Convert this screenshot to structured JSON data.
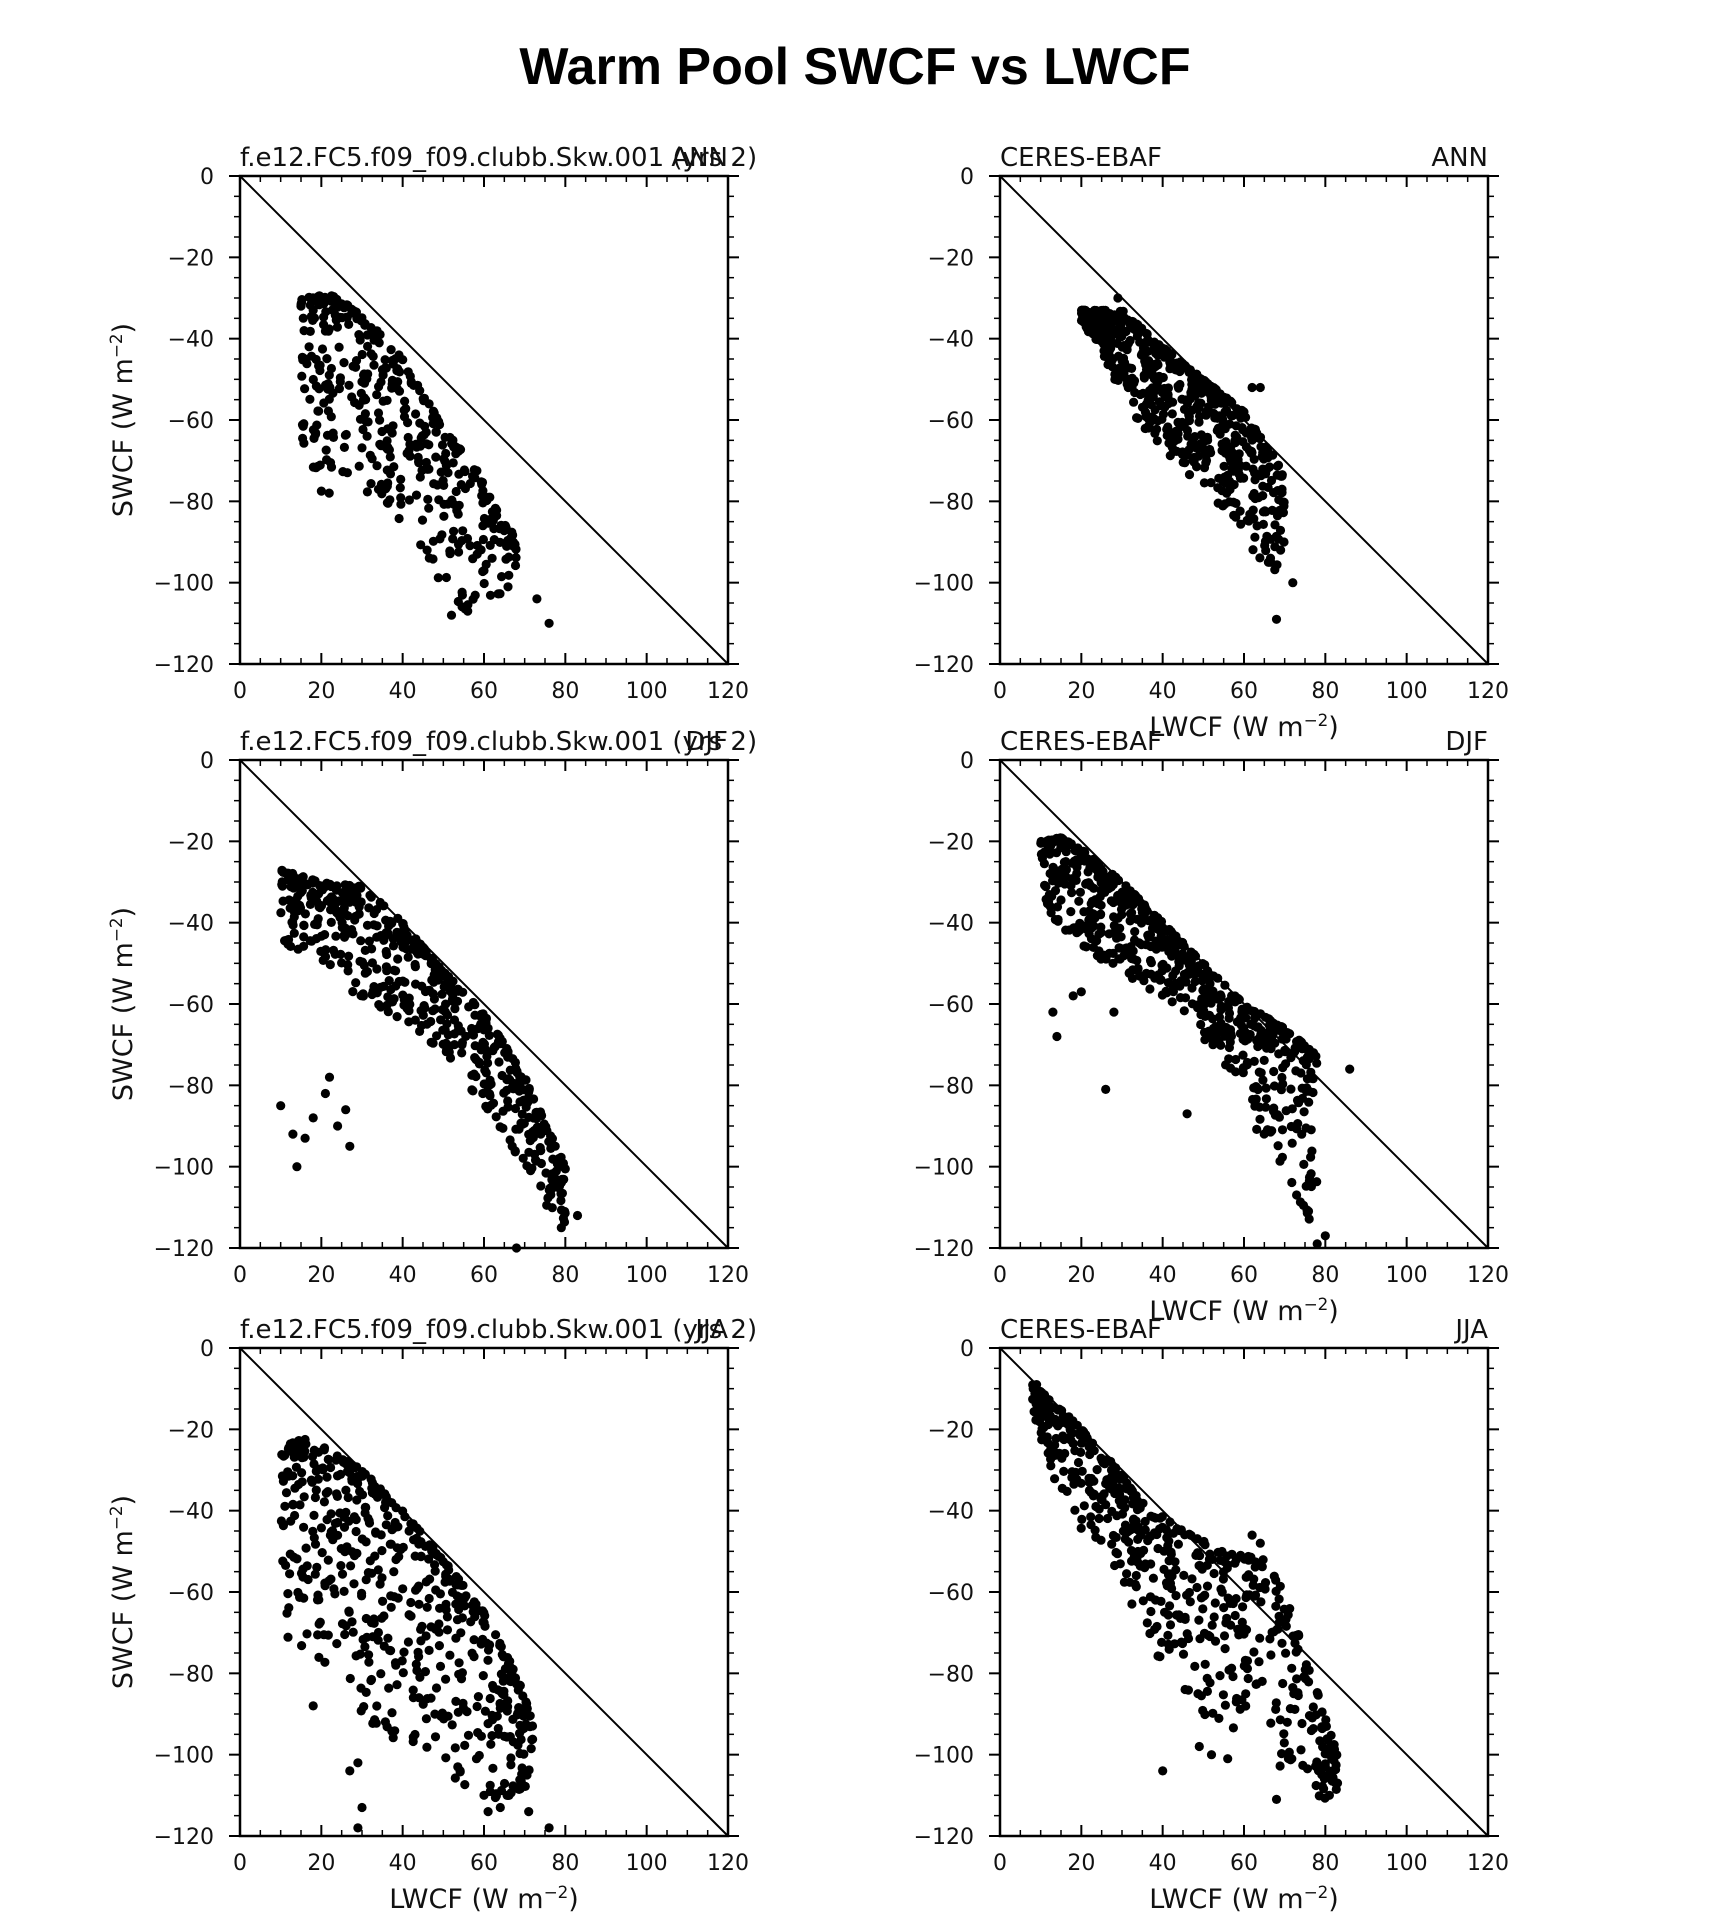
{
  "figure_title": "Warm Pool SWCF vs LWCF",
  "colors": {
    "background": "#ffffff",
    "points": "#000000",
    "axes": "#000000"
  },
  "chart_data": [
    {
      "type": "scatter",
      "left_label": "f.e12.FC5.f09_f09.clubb.Skw.001 (yrs 2)",
      "right_label": "ANN",
      "xlabel": "",
      "ylabel": "SWCF (W m^-2)",
      "xlim": [
        0,
        120
      ],
      "ylim": [
        -120,
        0
      ],
      "xticks": [
        0,
        20,
        40,
        60,
        80,
        100,
        120
      ],
      "yticks": [
        0,
        -20,
        -40,
        -60,
        -80,
        -100,
        -120
      ],
      "reference_line": {
        "x": [
          0,
          120
        ],
        "y": [
          0,
          -120
        ]
      },
      "cloud": {
        "n": 420,
        "seed": 11,
        "lead": [
          [
            15,
            -30
          ],
          [
            22,
            -29
          ],
          [
            30,
            -34
          ],
          [
            40,
            -45
          ],
          [
            50,
            -62
          ],
          [
            58,
            -72
          ],
          [
            65,
            -85
          ],
          [
            70,
            -92
          ]
        ],
        "trail": [
          [
            15,
            -68
          ],
          [
            20,
            -78
          ],
          [
            28,
            -78
          ],
          [
            40,
            -85
          ],
          [
            48,
            -98
          ],
          [
            55,
            -108
          ],
          [
            60,
            -106
          ],
          [
            68,
            -100
          ]
        ]
      },
      "points": [
        [
          76,
          -110
        ],
        [
          73,
          -104
        ],
        [
          52,
          -108
        ],
        [
          56,
          -107
        ],
        [
          60,
          -97
        ],
        [
          62,
          -94
        ],
        [
          46,
          -92
        ],
        [
          15,
          -32
        ],
        [
          18,
          -33
        ]
      ]
    },
    {
      "type": "scatter",
      "left_label": "CERES-EBAF",
      "right_label": "ANN",
      "xlabel": "LWCF (W m^-2)",
      "ylabel": "",
      "xlim": [
        0,
        120
      ],
      "ylim": [
        -120,
        0
      ],
      "xticks": [
        0,
        20,
        40,
        60,
        80,
        100,
        120
      ],
      "yticks": [
        0,
        -20,
        -40,
        -60,
        -80,
        -100,
        -120
      ],
      "reference_line": {
        "x": [
          0,
          120
        ],
        "y": [
          0,
          -120
        ]
      },
      "cloud": {
        "n": 600,
        "seed": 22,
        "lead": [
          [
            20,
            -33
          ],
          [
            25,
            -33
          ],
          [
            30,
            -33
          ],
          [
            40,
            -42
          ],
          [
            50,
            -50
          ],
          [
            60,
            -58
          ],
          [
            68,
            -70
          ],
          [
            76,
            -88
          ]
        ],
        "trail": [
          [
            20,
            -36
          ],
          [
            25,
            -44
          ],
          [
            30,
            -55
          ],
          [
            35,
            -62
          ],
          [
            45,
            -72
          ],
          [
            55,
            -82
          ],
          [
            63,
            -95
          ],
          [
            70,
            -100
          ]
        ]
      },
      "points": [
        [
          68,
          -109
        ],
        [
          72,
          -100
        ],
        [
          66,
          -95
        ],
        [
          69,
          -92
        ],
        [
          29,
          -30
        ],
        [
          62,
          -52
        ],
        [
          64,
          -52
        ]
      ]
    },
    {
      "type": "scatter",
      "left_label": "f.e12.FC5.f09_f09.clubb.Skw.001 (yrs 2)",
      "right_label": "DJF",
      "xlabel": "",
      "ylabel": "SWCF (W m^-2)",
      "xlim": [
        0,
        120
      ],
      "ylim": [
        -120,
        0
      ],
      "xticks": [
        0,
        20,
        40,
        60,
        80,
        100,
        120
      ],
      "yticks": [
        0,
        -20,
        -40,
        -60,
        -80,
        -100,
        -120
      ],
      "reference_line": {
        "x": [
          0,
          120
        ],
        "y": [
          0,
          -120
        ]
      },
      "cloud": {
        "n": 560,
        "seed": 33,
        "lead": [
          [
            10,
            -27
          ],
          [
            20,
            -30
          ],
          [
            30,
            -31
          ],
          [
            40,
            -40
          ],
          [
            50,
            -52
          ],
          [
            60,
            -62
          ],
          [
            70,
            -78
          ],
          [
            80,
            -100
          ],
          [
            85,
            -112
          ]
        ],
        "trail": [
          [
            10,
            -45
          ],
          [
            20,
            -50
          ],
          [
            30,
            -60
          ],
          [
            40,
            -65
          ],
          [
            50,
            -72
          ],
          [
            60,
            -85
          ],
          [
            70,
            -100
          ],
          [
            75,
            -110
          ],
          [
            80,
            -114
          ]
        ]
      },
      "points": [
        [
          10,
          -85
        ],
        [
          13,
          -92
        ],
        [
          14,
          -100
        ],
        [
          16,
          -93
        ],
        [
          21,
          -82
        ],
        [
          24,
          -90
        ],
        [
          27,
          -95
        ],
        [
          26,
          -86
        ],
        [
          22,
          -78
        ],
        [
          18,
          -88
        ],
        [
          68,
          -120
        ],
        [
          83,
          -112
        ],
        [
          79,
          -115
        ]
      ]
    },
    {
      "type": "scatter",
      "left_label": "CERES-EBAF",
      "right_label": "DJF",
      "xlabel": "LWCF (W m^-2)",
      "ylabel": "",
      "xlim": [
        0,
        120
      ],
      "ylim": [
        -120,
        0
      ],
      "xticks": [
        0,
        20,
        40,
        60,
        80,
        100,
        120
      ],
      "yticks": [
        0,
        -20,
        -40,
        -60,
        -80,
        -100,
        -120
      ],
      "reference_line": {
        "x": [
          0,
          120
        ],
        "y": [
          0,
          -120
        ]
      },
      "cloud": {
        "n": 640,
        "seed": 44,
        "lead": [
          [
            10,
            -20
          ],
          [
            15,
            -19
          ],
          [
            20,
            -22
          ],
          [
            30,
            -30
          ],
          [
            40,
            -40
          ],
          [
            50,
            -50
          ],
          [
            60,
            -60
          ],
          [
            70,
            -66
          ],
          [
            80,
            -74
          ],
          [
            85,
            -80
          ]
        ],
        "trail": [
          [
            10,
            -28
          ],
          [
            12,
            -38
          ],
          [
            18,
            -45
          ],
          [
            30,
            -52
          ],
          [
            45,
            -62
          ],
          [
            55,
            -75
          ],
          [
            65,
            -95
          ],
          [
            72,
            -105
          ],
          [
            78,
            -118
          ]
        ]
      },
      "points": [
        [
          13,
          -62
        ],
        [
          14,
          -68
        ],
        [
          18,
          -58
        ],
        [
          20,
          -57
        ],
        [
          26,
          -81
        ],
        [
          28,
          -62
        ],
        [
          46,
          -87
        ],
        [
          86,
          -76
        ],
        [
          80,
          -117
        ],
        [
          78,
          -119
        ]
      ]
    },
    {
      "type": "scatter",
      "left_label": "f.e12.FC5.f09_f09.clubb.Skw.001 (yrs 2)",
      "right_label": "JJA",
      "xlabel": "LWCF (W m^-2)",
      "ylabel": "SWCF (W m^-2)",
      "xlim": [
        0,
        120
      ],
      "ylim": [
        -120,
        0
      ],
      "xticks": [
        0,
        20,
        40,
        60,
        80,
        100,
        120
      ],
      "yticks": [
        0,
        -20,
        -40,
        -60,
        -80,
        -100,
        -120
      ],
      "reference_line": {
        "x": [
          0,
          120
        ],
        "y": [
          0,
          -120
        ]
      },
      "cloud": {
        "n": 560,
        "seed": 55,
        "lead": [
          [
            10,
            -25
          ],
          [
            15,
            -22
          ],
          [
            20,
            -24
          ],
          [
            30,
            -30
          ],
          [
            40,
            -40
          ],
          [
            50,
            -52
          ],
          [
            60,
            -65
          ],
          [
            68,
            -80
          ],
          [
            72,
            -92
          ]
        ],
        "trail": [
          [
            8,
            -55
          ],
          [
            10,
            -70
          ],
          [
            15,
            -75
          ],
          [
            25,
            -85
          ],
          [
            35,
            -95
          ],
          [
            45,
            -100
          ],
          [
            55,
            -108
          ],
          [
            65,
            -113
          ],
          [
            72,
            -112
          ]
        ]
      },
      "points": [
        [
          29,
          -118
        ],
        [
          30,
          -113
        ],
        [
          76,
          -118
        ],
        [
          71,
          -114
        ],
        [
          64,
          -113
        ],
        [
          61,
          -114
        ],
        [
          60,
          -110
        ],
        [
          27,
          -104
        ],
        [
          29,
          -102
        ],
        [
          18,
          -88
        ]
      ]
    },
    {
      "type": "scatter",
      "left_label": "CERES-EBAF",
      "right_label": "JJA",
      "xlabel": "LWCF (W m^-2)",
      "ylabel": "",
      "xlim": [
        0,
        120
      ],
      "ylim": [
        -120,
        0
      ],
      "xticks": [
        0,
        20,
        40,
        60,
        80,
        100,
        120
      ],
      "yticks": [
        0,
        -20,
        -40,
        -60,
        -80,
        -100,
        -120
      ],
      "reference_line": {
        "x": [
          0,
          120
        ],
        "y": [
          0,
          -120
        ]
      },
      "cloud": {
        "n": 560,
        "seed": 66,
        "lead": [
          [
            8,
            -9
          ],
          [
            15,
            -15
          ],
          [
            25,
            -25
          ],
          [
            35,
            -38
          ],
          [
            45,
            -45
          ],
          [
            55,
            -50
          ],
          [
            65,
            -52
          ],
          [
            70,
            -60
          ],
          [
            83,
            -100
          ]
        ],
        "trail": [
          [
            8,
            -15
          ],
          [
            12,
            -30
          ],
          [
            20,
            -45
          ],
          [
            30,
            -58
          ],
          [
            38,
            -75
          ],
          [
            50,
            -90
          ],
          [
            65,
            -100
          ],
          [
            78,
            -110
          ],
          [
            83,
            -112
          ]
        ]
      },
      "points": [
        [
          9,
          -9
        ],
        [
          40,
          -104
        ],
        [
          49,
          -98
        ],
        [
          52,
          -100
        ],
        [
          56,
          -101
        ],
        [
          68,
          -111
        ],
        [
          81,
          -110
        ],
        [
          83,
          -107
        ],
        [
          62,
          -46
        ],
        [
          64,
          -48
        ]
      ]
    }
  ]
}
